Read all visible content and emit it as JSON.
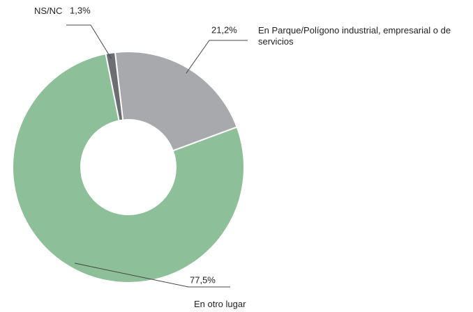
{
  "chart_data": {
    "type": "donut",
    "categories": [
      "En Parque/Polígono industrial, empresarial o de servicios",
      "En otro lugar",
      "NS/NC"
    ],
    "values": [
      21.2,
      77.5,
      1.3
    ],
    "value_labels": [
      "21,2%",
      "77,5%",
      "1,3%"
    ],
    "colors": [
      "#a7a9ac",
      "#8dbf98",
      "#6d6e71"
    ]
  }
}
